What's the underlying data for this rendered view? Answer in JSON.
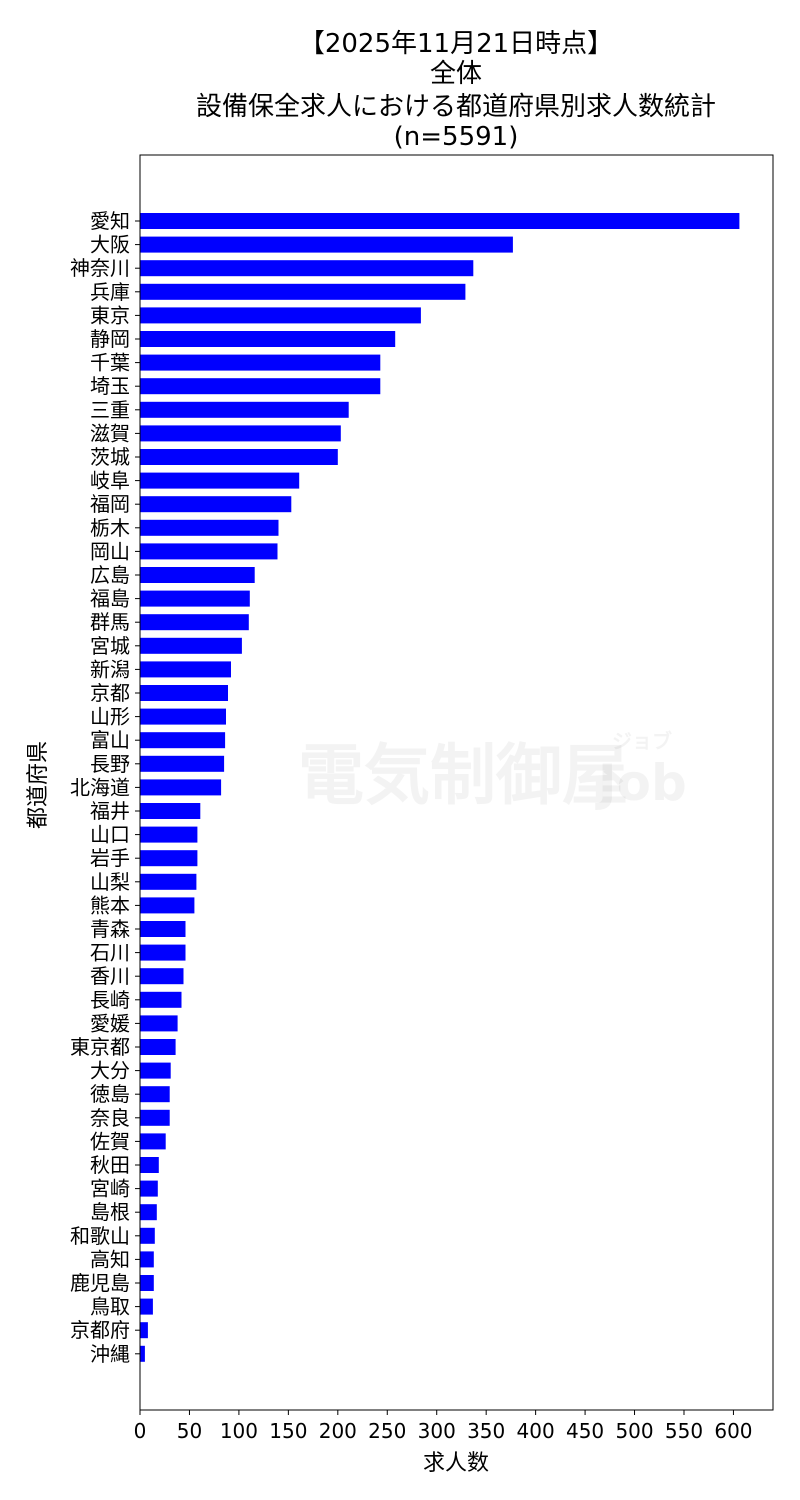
{
  "chart_data": {
    "type": "bar",
    "orientation": "horizontal",
    "title_lines": [
      "【2025年11月21日時点】",
      "全体",
      "設備保全求人における都道府県別求人数統計",
      "(n=5591)"
    ],
    "xlabel": "求人数",
    "ylabel": "都道府県",
    "xlim": [
      0,
      640
    ],
    "xticks": [
      0,
      50,
      100,
      150,
      200,
      250,
      300,
      350,
      400,
      450,
      500,
      550,
      600
    ],
    "bar_color": "#0000ff",
    "grid": false,
    "categories": [
      "愛知",
      "大阪",
      "神奈川",
      "兵庫",
      "東京",
      "静岡",
      "千葉",
      "埼玉",
      "三重",
      "滋賀",
      "茨城",
      "岐阜",
      "福岡",
      "栃木",
      "岡山",
      "広島",
      "福島",
      "群馬",
      "宮城",
      "新潟",
      "京都",
      "山形",
      "富山",
      "長野",
      "北海道",
      "福井",
      "山口",
      "岩手",
      "山梨",
      "熊本",
      "青森",
      "石川",
      "香川",
      "長崎",
      "愛媛",
      "東京都",
      "大分",
      "徳島",
      "奈良",
      "佐賀",
      "秋田",
      "宮崎",
      "島根",
      "和歌山",
      "高知",
      "鹿児島",
      "鳥取",
      "京都府",
      "沖縄"
    ],
    "values": [
      606,
      377,
      337,
      329,
      284,
      258,
      243,
      243,
      211,
      203,
      200,
      161,
      153,
      140,
      139,
      116,
      111,
      110,
      103,
      92,
      89,
      87,
      86,
      85,
      82,
      61,
      58,
      58,
      57,
      55,
      46,
      46,
      44,
      42,
      38,
      36,
      31,
      30,
      30,
      26,
      19,
      18,
      17,
      15,
      14,
      14,
      13,
      8,
      5
    ]
  },
  "watermark": {
    "text": "電気制御屋",
    "sub_text": "Job",
    "small_text": "ジョブ"
  }
}
